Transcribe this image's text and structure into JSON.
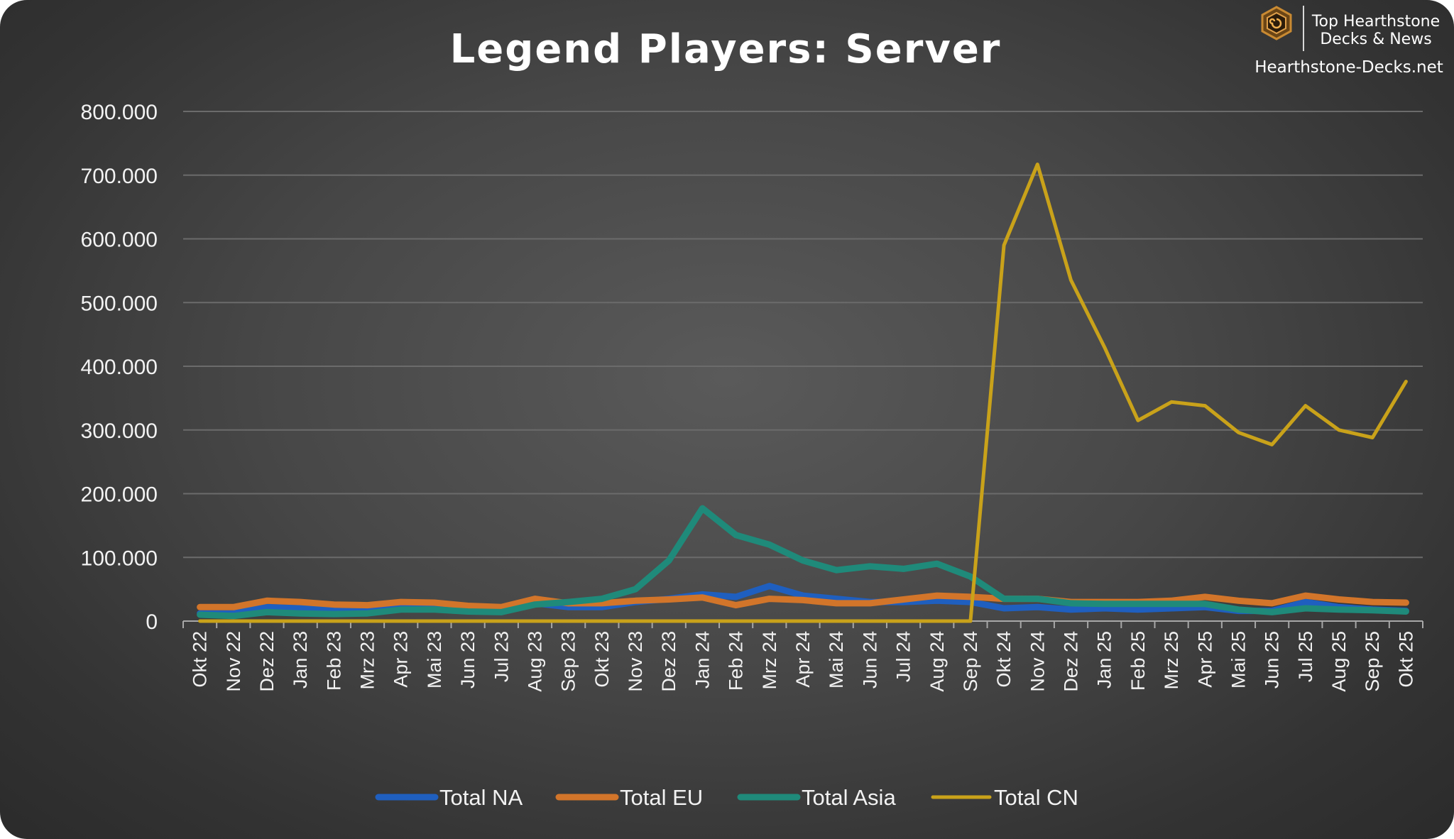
{
  "brand": {
    "line1": "Top Hearthstone",
    "line2": "Decks & News",
    "site": "Hearthstone-Decks.net"
  },
  "chart_data": {
    "type": "line",
    "title": "Legend Players: Server",
    "xlabel": "",
    "ylabel": "",
    "ylim": [
      0,
      800000
    ],
    "yticks": [
      0,
      100000,
      200000,
      300000,
      400000,
      500000,
      600000,
      700000,
      800000
    ],
    "ytick_labels": [
      "0",
      "100.000",
      "200.000",
      "300.000",
      "400.000",
      "500.000",
      "600.000",
      "700.000",
      "800.000"
    ],
    "grid": true,
    "legend_position": "bottom",
    "categories": [
      "Okt 22",
      "Nov 22",
      "Dez 22",
      "Jan 23",
      "Feb 23",
      "Mrz 23",
      "Apr 23",
      "Mai 23",
      "Jun 23",
      "Jul 23",
      "Aug 23",
      "Sep 23",
      "Okt 23",
      "Nov 23",
      "Dez 23",
      "Jan 24",
      "Feb 24",
      "Mrz 24",
      "Apr 24",
      "Mai 24",
      "Jun 24",
      "Jul 24",
      "Aug 24",
      "Sep 24",
      "Okt 24",
      "Nov 24",
      "Dez 24",
      "Jan 25",
      "Feb 25",
      "Mrz 25",
      "Apr 25",
      "Mai 25",
      "Jun 25",
      "Jul 25",
      "Aug 25",
      "Sep 25",
      "Okt 25"
    ],
    "series": [
      {
        "name": "Total NA",
        "color": "#1f5fbf",
        "values": [
          12000,
          12000,
          22000,
          20000,
          18000,
          18000,
          22000,
          22000,
          20000,
          18000,
          28000,
          22000,
          22000,
          30000,
          35000,
          42000,
          38000,
          55000,
          40000,
          35000,
          30000,
          30000,
          32000,
          30000,
          20000,
          22000,
          18000,
          20000,
          18000,
          20000,
          22000,
          16000,
          16000,
          30000,
          22000,
          18000,
          16000
        ]
      },
      {
        "name": "Total EU",
        "color": "#d2752a",
        "values": [
          22000,
          22000,
          32000,
          30000,
          26000,
          25000,
          30000,
          29000,
          24000,
          22000,
          35000,
          28000,
          28000,
          32000,
          34000,
          37000,
          25000,
          35000,
          33000,
          28000,
          28000,
          34000,
          40000,
          38000,
          35000,
          35000,
          30000,
          30000,
          30000,
          32000,
          38000,
          32000,
          28000,
          40000,
          34000,
          30000,
          29000
        ]
      },
      {
        "name": "Total Asia",
        "color": "#1f8a7a",
        "values": [
          10000,
          8000,
          14000,
          12000,
          11000,
          12000,
          18000,
          18000,
          15000,
          14000,
          26000,
          30000,
          35000,
          50000,
          95000,
          177000,
          135000,
          120000,
          95000,
          80000,
          86000,
          82000,
          90000,
          70000,
          35000,
          35000,
          28000,
          27000,
          27000,
          27000,
          27000,
          18000,
          14000,
          20000,
          18000,
          17000,
          15000
        ]
      },
      {
        "name": "Total CN",
        "color": "#c9a21a",
        "values": [
          0,
          0,
          0,
          0,
          0,
          0,
          0,
          0,
          0,
          0,
          0,
          0,
          0,
          0,
          0,
          0,
          0,
          0,
          0,
          0,
          0,
          0,
          0,
          0,
          590000,
          717000,
          535000,
          430000,
          315000,
          344000,
          338000,
          296000,
          277000,
          338000,
          300000,
          288000,
          376000
        ]
      }
    ]
  }
}
